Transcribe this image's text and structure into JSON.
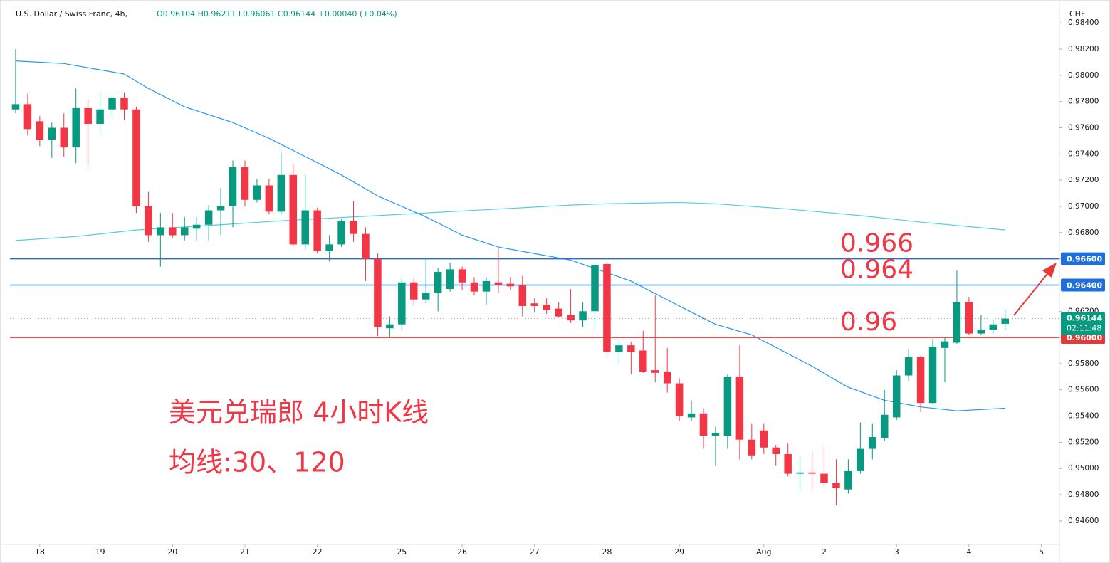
{
  "chart_data": {
    "type": "candlestick",
    "title": "U.S. Dollar / Swiss Franc, 4h,",
    "ohlc_legend": "O0.96104 H0.96211 L0.96061 C0.96144 +0.00040 (+0.04%)",
    "y_label": "CHF",
    "annotations": [
      "美元兑瑞郎 4小时K线",
      "均线:30、120"
    ],
    "up_color": "#089981",
    "down_color": "#f23645",
    "candles": {
      "open": [
        0.9774,
        0.9778,
        0.9765,
        0.9751,
        0.976,
        0.9745,
        0.9775,
        0.9763,
        0.9774,
        0.9783,
        0.9774,
        0.97,
        0.9678,
        0.9684,
        0.9678,
        0.9683,
        0.9686,
        0.9697,
        0.97,
        0.973,
        0.9705,
        0.9716,
        0.9696,
        0.9724,
        0.9671,
        0.9697,
        0.9666,
        0.9671,
        0.9689,
        0.9679,
        0.966,
        0.9607,
        0.961,
        0.9642,
        0.9629,
        0.9634,
        0.9637,
        0.9652,
        0.9642,
        0.9635,
        0.9642,
        0.9641,
        0.964,
        0.9626,
        0.9625,
        0.9622,
        0.9617,
        0.9613,
        0.962,
        0.9656,
        0.9589,
        0.9594,
        0.959,
        0.9575,
        0.9574,
        0.9565,
        0.9539,
        0.9542,
        0.9525,
        0.9525,
        0.957,
        0.9522,
        0.9529,
        0.9516,
        0.9511,
        0.9496,
        0.9497,
        0.9496,
        0.9489,
        0.9484,
        0.9498,
        0.9515,
        0.9523,
        0.9539,
        0.9571,
        0.9585,
        0.955,
        0.9592,
        0.9596,
        0.9627,
        0.9603,
        0.9606,
        0.96104
      ],
      "high": [
        0.982,
        0.9786,
        0.9769,
        0.9764,
        0.9771,
        0.979,
        0.9781,
        0.9787,
        0.9785,
        0.9787,
        0.9776,
        0.9711,
        0.9695,
        0.9695,
        0.9692,
        0.9692,
        0.9701,
        0.9714,
        0.9735,
        0.9735,
        0.9721,
        0.9721,
        0.9741,
        0.9732,
        0.9724,
        0.9699,
        0.9678,
        0.969,
        0.9704,
        0.9684,
        0.9664,
        0.9616,
        0.9645,
        0.9645,
        0.966,
        0.9653,
        0.9657,
        0.9654,
        0.9646,
        0.9646,
        0.9668,
        0.9646,
        0.9647,
        0.963,
        0.963,
        0.9627,
        0.9637,
        0.9627,
        0.9657,
        0.9658,
        0.9599,
        0.9597,
        0.9605,
        0.9632,
        0.9592,
        0.9569,
        0.9552,
        0.9546,
        0.9532,
        0.9572,
        0.9594,
        0.9534,
        0.9534,
        0.9518,
        0.9519,
        0.951,
        0.9513,
        0.9516,
        0.9507,
        0.9507,
        0.9535,
        0.9534,
        0.956,
        0.9575,
        0.9591,
        0.9586,
        0.9599,
        0.96,
        0.9651,
        0.9631,
        0.9617,
        0.9614,
        0.96211
      ],
      "low": [
        0.9771,
        0.9754,
        0.9746,
        0.9737,
        0.9738,
        0.9733,
        0.9731,
        0.9756,
        0.9768,
        0.9766,
        0.9695,
        0.9673,
        0.9654,
        0.9676,
        0.9674,
        0.9674,
        0.9674,
        0.9678,
        0.9684,
        0.97,
        0.9703,
        0.9694,
        0.9694,
        0.967,
        0.9667,
        0.9664,
        0.9658,
        0.9669,
        0.9673,
        0.9643,
        0.9601,
        0.96,
        0.9605,
        0.9624,
        0.9626,
        0.962,
        0.9635,
        0.9636,
        0.9632,
        0.9625,
        0.9634,
        0.9636,
        0.9616,
        0.9619,
        0.9618,
        0.9615,
        0.9611,
        0.9608,
        0.9605,
        0.9585,
        0.958,
        0.9572,
        0.9573,
        0.9566,
        0.9558,
        0.9536,
        0.9536,
        0.9515,
        0.9502,
        0.9515,
        0.9507,
        0.9507,
        0.9511,
        0.9502,
        0.9494,
        0.9483,
        0.9483,
        0.9486,
        0.9472,
        0.9481,
        0.9496,
        0.9507,
        0.9521,
        0.9537,
        0.9567,
        0.9543,
        0.9549,
        0.9566,
        0.9595,
        0.9602,
        0.9602,
        0.9603,
        0.96061
      ],
      "close": [
        0.9778,
        0.9759,
        0.9751,
        0.976,
        0.9745,
        0.9775,
        0.9763,
        0.9774,
        0.9783,
        0.9774,
        0.97,
        0.9678,
        0.9684,
        0.9678,
        0.9684,
        0.9686,
        0.9697,
        0.97,
        0.973,
        0.9705,
        0.9716,
        0.9696,
        0.9724,
        0.9671,
        0.9697,
        0.9666,
        0.9671,
        0.9689,
        0.9679,
        0.966,
        0.9608,
        0.961,
        0.9642,
        0.9629,
        0.9634,
        0.965,
        0.9652,
        0.9642,
        0.9635,
        0.9643,
        0.964,
        0.9639,
        0.9624,
        0.9624,
        0.9621,
        0.9616,
        0.9613,
        0.962,
        0.9655,
        0.9589,
        0.9594,
        0.9589,
        0.9574,
        0.9573,
        0.9565,
        0.954,
        0.9542,
        0.9525,
        0.9527,
        0.957,
        0.9522,
        0.951,
        0.9516,
        0.9511,
        0.9496,
        0.9497,
        0.9496,
        0.9489,
        0.9485,
        0.9498,
        0.9515,
        0.9524,
        0.9541,
        0.9571,
        0.9585,
        0.955,
        0.9593,
        0.9597,
        0.9627,
        0.9603,
        0.9606,
        0.961,
        0.96144
      ]
    },
    "lines": [
      {
        "color": "#2196f3",
        "x": [
          0,
          4,
          9,
          11,
          14,
          18,
          21,
          24,
          27,
          30,
          34,
          37,
          40,
          46,
          51,
          55,
          58,
          61,
          66,
          69,
          72,
          75,
          78,
          82
        ],
        "values": [
          0.9811,
          0.9809,
          0.9801,
          0.979,
          0.9776,
          0.9764,
          0.9752,
          0.9738,
          0.9724,
          0.9708,
          0.9692,
          0.9678,
          0.9669,
          0.9659,
          0.9643,
          0.9624,
          0.961,
          0.9602,
          0.9578,
          0.9562,
          0.9552,
          0.9547,
          0.9544,
          0.9546
        ]
      },
      {
        "color": "#4dd0e1",
        "x": [
          0,
          5,
          10,
          17,
          22,
          28,
          34,
          40,
          46,
          49,
          55,
          58,
          64,
          70,
          75,
          82
        ],
        "values": [
          0.9674,
          0.9677,
          0.9682,
          0.9686,
          0.9689,
          0.9692,
          0.9695,
          0.9698,
          0.9701,
          0.9702,
          0.9703,
          0.9702,
          0.9698,
          0.9693,
          0.9688,
          0.9682
        ]
      }
    ],
    "hlines": [
      {
        "value": 0.966,
        "label": "0.96600",
        "annotation": "0.966",
        "color": "#1e6fdc"
      },
      {
        "value": 0.964,
        "label": "0.96400",
        "annotation": "0.964",
        "color": "#1e6fdc"
      },
      {
        "value": 0.96,
        "label": "0.96000",
        "annotation": "0.96",
        "color": "#e53935"
      }
    ],
    "price": 0.96144,
    "countdown": "02:11:48",
    "xlim": [
      -0.47,
      86.5
    ],
    "ylim": [
      0.9442,
      0.98575
    ],
    "xticks": [
      {
        "value": 2,
        "label": "18"
      },
      {
        "value": 7,
        "label": "19"
      },
      {
        "value": 13,
        "label": "20"
      },
      {
        "value": 19,
        "label": "21"
      },
      {
        "value": 25,
        "label": "22"
      },
      {
        "value": 32,
        "label": "25"
      },
      {
        "value": 37,
        "label": "26"
      },
      {
        "value": 43,
        "label": "27"
      },
      {
        "value": 49,
        "label": "28"
      },
      {
        "value": 55,
        "label": "29"
      },
      {
        "value": 62,
        "label": "Aug"
      },
      {
        "value": 67,
        "label": "2"
      },
      {
        "value": 73,
        "label": "3"
      },
      {
        "value": 79,
        "label": "4"
      },
      {
        "value": 85,
        "label": "5"
      }
    ],
    "yticks": [
      {
        "value": 0.946,
        "label": "0.94600"
      },
      {
        "value": 0.948,
        "label": "0.94800"
      },
      {
        "value": 0.95,
        "label": "0.95000"
      },
      {
        "value": 0.952,
        "label": "0.95200"
      },
      {
        "value": 0.954,
        "label": "0.95400"
      },
      {
        "value": 0.956,
        "label": "0.95600"
      },
      {
        "value": 0.958,
        "label": "0.95800"
      },
      {
        "value": 0.96,
        "label": "0.96000"
      },
      {
        "value": 0.962,
        "label": "0.96200"
      },
      {
        "value": 0.964,
        "label": "0.96400"
      },
      {
        "value": 0.966,
        "label": "0.96600"
      },
      {
        "value": 0.968,
        "label": "0.96800"
      },
      {
        "value": 0.97,
        "label": "0.97000"
      },
      {
        "value": 0.972,
        "label": "0.97200"
      },
      {
        "value": 0.974,
        "label": "0.97400"
      },
      {
        "value": 0.976,
        "label": "0.97600"
      },
      {
        "value": 0.978,
        "label": "0.97800"
      },
      {
        "value": 0.98,
        "label": "0.98000"
      },
      {
        "value": 0.982,
        "label": "0.98200"
      },
      {
        "value": 0.984,
        "label": "0.98400"
      }
    ]
  }
}
